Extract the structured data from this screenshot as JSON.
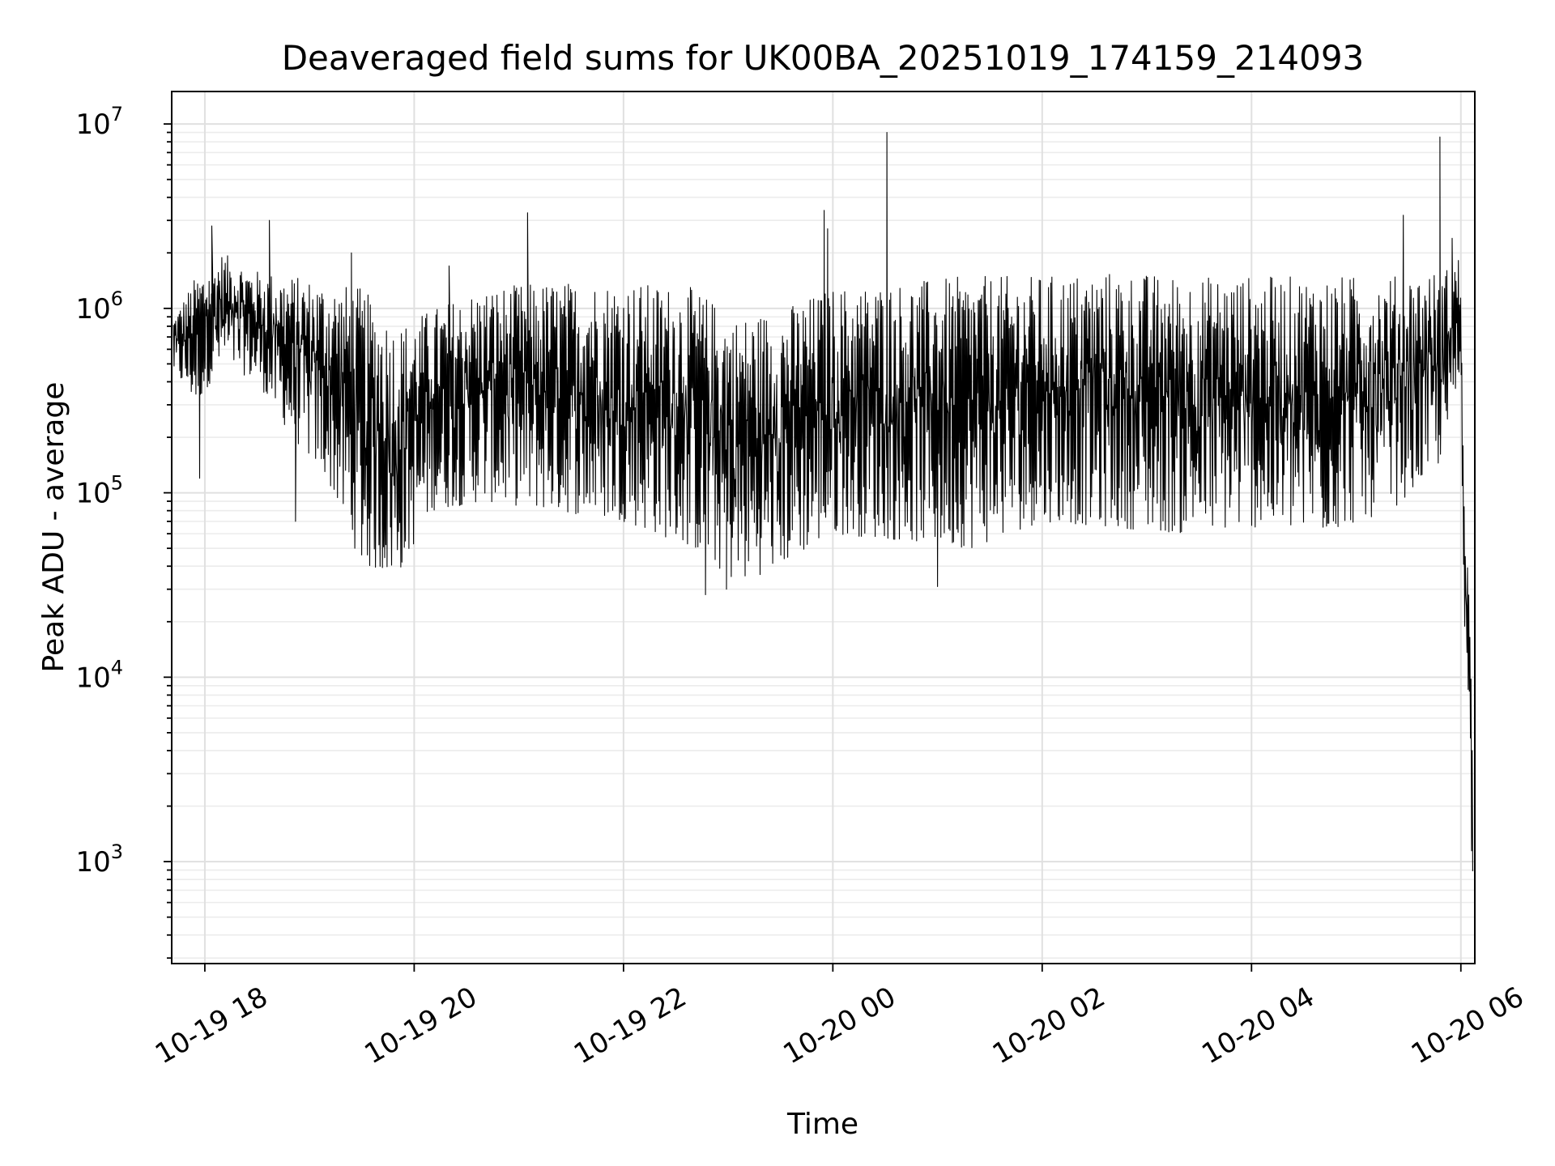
{
  "chart_data": {
    "type": "line",
    "title": "Deaveraged field sums for UK00BA_20251019_174159_214093",
    "xlabel": "Time",
    "ylabel": "Peak ADU - average",
    "y_scale": "log",
    "ylim": [
      280,
      15000000
    ],
    "xlim": [
      "2025-10-19 17:41",
      "2025-10-20 06:08"
    ],
    "grid": true,
    "x_ticks": [
      {
        "value": "2025-10-19 18:00",
        "label": "10-19 18"
      },
      {
        "value": "2025-10-19 20:00",
        "label": "10-19 20"
      },
      {
        "value": "2025-10-19 22:00",
        "label": "10-19 22"
      },
      {
        "value": "2025-10-20 00:00",
        "label": "10-20 00"
      },
      {
        "value": "2025-10-20 02:00",
        "label": "10-20 02"
      },
      {
        "value": "2025-10-20 04:00",
        "label": "10-20 04"
      },
      {
        "value": "2025-10-20 06:00",
        "label": "10-20 06"
      }
    ],
    "y_ticks": [
      {
        "value": 1000,
        "base": "10",
        "exp": "3"
      },
      {
        "value": 10000,
        "base": "10",
        "exp": "4"
      },
      {
        "value": 100000,
        "base": "10",
        "exp": "5"
      },
      {
        "value": 1000000,
        "base": "10",
        "exp": "6"
      },
      {
        "value": 10000000,
        "base": "10",
        "exp": "7"
      }
    ],
    "series": [
      {
        "color": "#000000",
        "envelope": [
          {
            "t": "2025-10-19 17:42",
            "low": 450000,
            "high": 900000
          },
          {
            "t": "2025-10-19 17:55",
            "low": 300000,
            "high": 1500000
          },
          {
            "t": "2025-10-19 18:10",
            "low": 500000,
            "high": 2000000
          },
          {
            "t": "2025-10-19 18:30",
            "low": 400000,
            "high": 1600000
          },
          {
            "t": "2025-10-19 18:50",
            "low": 200000,
            "high": 1500000
          },
          {
            "t": "2025-10-19 19:10",
            "low": 120000,
            "high": 1400000
          },
          {
            "t": "2025-10-19 19:30",
            "low": 40000,
            "high": 1300000
          },
          {
            "t": "2025-10-19 19:50",
            "low": 35000,
            "high": 800000
          },
          {
            "t": "2025-10-19 20:10",
            "low": 80000,
            "high": 1000000
          },
          {
            "t": "2025-10-19 20:40",
            "low": 90000,
            "high": 1300000
          },
          {
            "t": "2025-10-19 21:20",
            "low": 80000,
            "high": 1400000
          },
          {
            "t": "2025-10-19 22:00",
            "low": 70000,
            "high": 1400000
          },
          {
            "t": "2025-10-19 22:40",
            "low": 50000,
            "high": 1300000
          },
          {
            "t": "2025-10-19 23:05",
            "low": 32000,
            "high": 900000
          },
          {
            "t": "2025-10-19 23:30",
            "low": 40000,
            "high": 1000000
          },
          {
            "t": "2025-10-20 00:00",
            "low": 60000,
            "high": 1300000
          },
          {
            "t": "2025-10-20 00:40",
            "low": 55000,
            "high": 1400000
          },
          {
            "t": "2025-10-20 01:20",
            "low": 50000,
            "high": 1500000
          },
          {
            "t": "2025-10-20 02:00",
            "low": 70000,
            "high": 1500000
          },
          {
            "t": "2025-10-20 02:40",
            "low": 65000,
            "high": 1600000
          },
          {
            "t": "2025-10-20 03:20",
            "low": 60000,
            "high": 1500000
          },
          {
            "t": "2025-10-20 04:00",
            "low": 65000,
            "high": 1500000
          },
          {
            "t": "2025-10-20 04:40",
            "low": 60000,
            "high": 1500000
          },
          {
            "t": "2025-10-20 05:20",
            "low": 80000,
            "high": 1500000
          },
          {
            "t": "2025-10-20 05:50",
            "low": 150000,
            "high": 1600000
          },
          {
            "t": "2025-10-20 06:00",
            "low": 400000,
            "high": 2000000
          },
          {
            "t": "2025-10-20 06:02",
            "low": 20000,
            "high": 70000
          },
          {
            "t": "2025-10-20 06:04",
            "low": 7000,
            "high": 50000
          },
          {
            "t": "2025-10-20 06:06",
            "low": 1200,
            "high": 10000
          },
          {
            "t": "2025-10-20 06:07",
            "low": 800,
            "high": 1500
          }
        ],
        "spikes": [
          {
            "t": "2025-10-19 17:57",
            "value": 120000
          },
          {
            "t": "2025-10-19 18:04",
            "value": 2800000
          },
          {
            "t": "2025-10-19 18:37",
            "value": 3000000
          },
          {
            "t": "2025-10-19 18:52",
            "value": 70000
          },
          {
            "t": "2025-10-19 19:24",
            "value": 2000000
          },
          {
            "t": "2025-10-19 20:20",
            "value": 1700000
          },
          {
            "t": "2025-10-19 21:05",
            "value": 3300000
          },
          {
            "t": "2025-10-19 22:47",
            "value": 28000
          },
          {
            "t": "2025-10-19 22:59",
            "value": 30000
          },
          {
            "t": "2025-10-19 23:55",
            "value": 3400000
          },
          {
            "t": "2025-10-19 23:57",
            "value": 2700000
          },
          {
            "t": "2025-10-20 00:31",
            "value": 9000000
          },
          {
            "t": "2025-10-20 01:00",
            "value": 31000
          },
          {
            "t": "2025-10-20 05:27",
            "value": 3200000
          },
          {
            "t": "2025-10-20 05:48",
            "value": 8500000
          },
          {
            "t": "2025-10-20 05:55",
            "value": 2400000
          }
        ]
      }
    ]
  }
}
